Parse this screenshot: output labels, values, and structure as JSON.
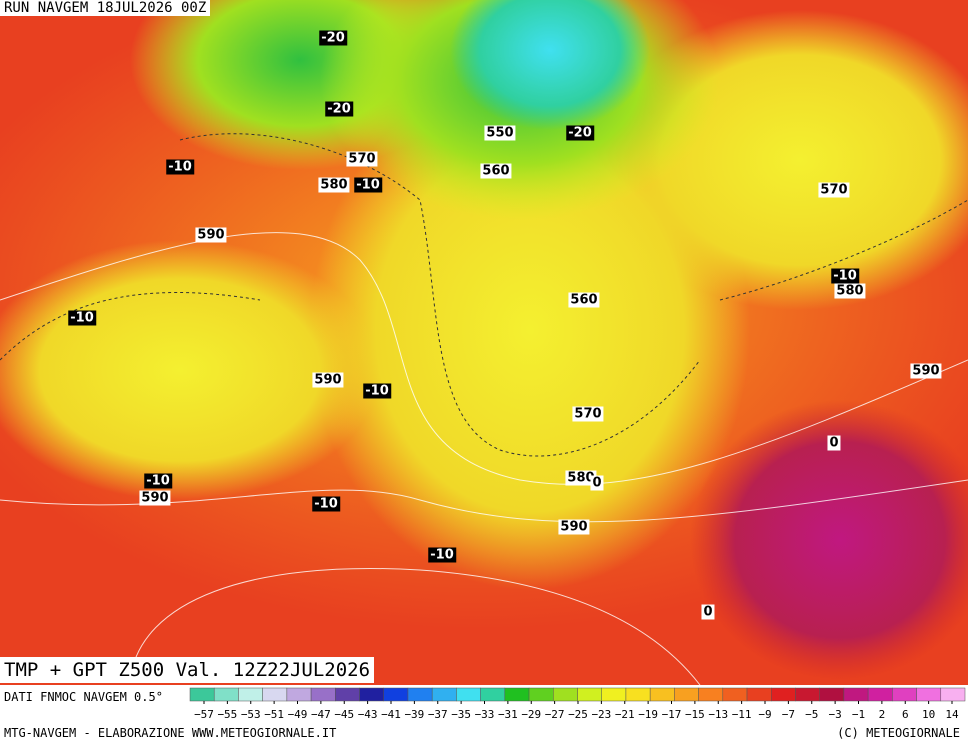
{
  "header": {
    "run": "RUN NAVGEM 18JUL2026 00Z"
  },
  "contour_labels": [
    "-20",
    "-20",
    "550",
    "-20",
    "570",
    "560",
    "580",
    "-10",
    "-10",
    "590",
    "570",
    "-10",
    "580",
    "560",
    "-10",
    "590",
    "-10",
    "570",
    "590",
    "0",
    "-10",
    "590",
    "580",
    "0",
    "-10",
    "590",
    "-10",
    "0"
  ],
  "footer": {
    "title": "TMP + GPT Z500 Val. 12Z22JUL2026",
    "source": "DATI FNMOC NAVGEM 0.5°",
    "credit_left": "MTG-NAVGEM - ELABORAZIONE WWW.METEOGIORNALE.IT",
    "credit_right": "(C) METEOGIORNALE"
  },
  "legend": {
    "ticks": [
      -57,
      -55,
      -53,
      -51,
      -49,
      -47,
      -45,
      -43,
      -41,
      -39,
      -37,
      -35,
      -33,
      -31,
      -29,
      -27,
      -25,
      -23,
      -21,
      -19,
      -17,
      -15,
      -13,
      -11,
      -9,
      -7,
      -5,
      -3,
      -1,
      2,
      6,
      10,
      14
    ],
    "colors": [
      "#3cc89a",
      "#80e0c8",
      "#c0f0e8",
      "#d8d8f0",
      "#c0a8e0",
      "#9870c8",
      "#6040a8",
      "#2020a0",
      "#1040e0",
      "#2080f0",
      "#30b0f0",
      "#40e0f0",
      "#30d0a0",
      "#20c020",
      "#60d020",
      "#a0e020",
      "#d0f020",
      "#f0f020",
      "#f8e020",
      "#f8c020",
      "#f8a020",
      "#f88020",
      "#f06020",
      "#e84020",
      "#e02020",
      "#c81830",
      "#b01040",
      "#c01880",
      "#d020a0",
      "#e040c0",
      "#f070e0",
      "#f8b0f0"
    ]
  }
}
